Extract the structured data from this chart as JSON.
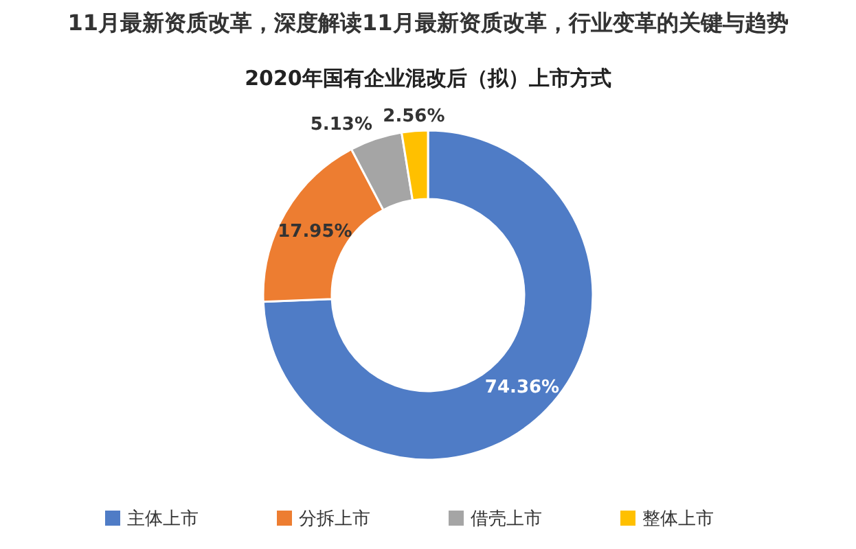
{
  "chart_data": {
    "type": "donut",
    "title": "2020年国有企业混改后（拟）上市方式",
    "annotations": [
      "11月最新资质改革，深度解读11月最新资质改革，行业变革的关键与趋势"
    ],
    "categories": [
      "主体上市",
      "分拆上市",
      "借壳上市",
      "整体上市"
    ],
    "values": [
      74.36,
      17.95,
      5.13,
      2.56
    ],
    "colors": [
      "#4f7cc6",
      "#ed7d31",
      "#a5a5a5",
      "#ffc000"
    ],
    "value_labels": [
      "74.36%",
      "17.95%",
      "5.13%",
      "2.56%"
    ],
    "legend": "bottom"
  }
}
